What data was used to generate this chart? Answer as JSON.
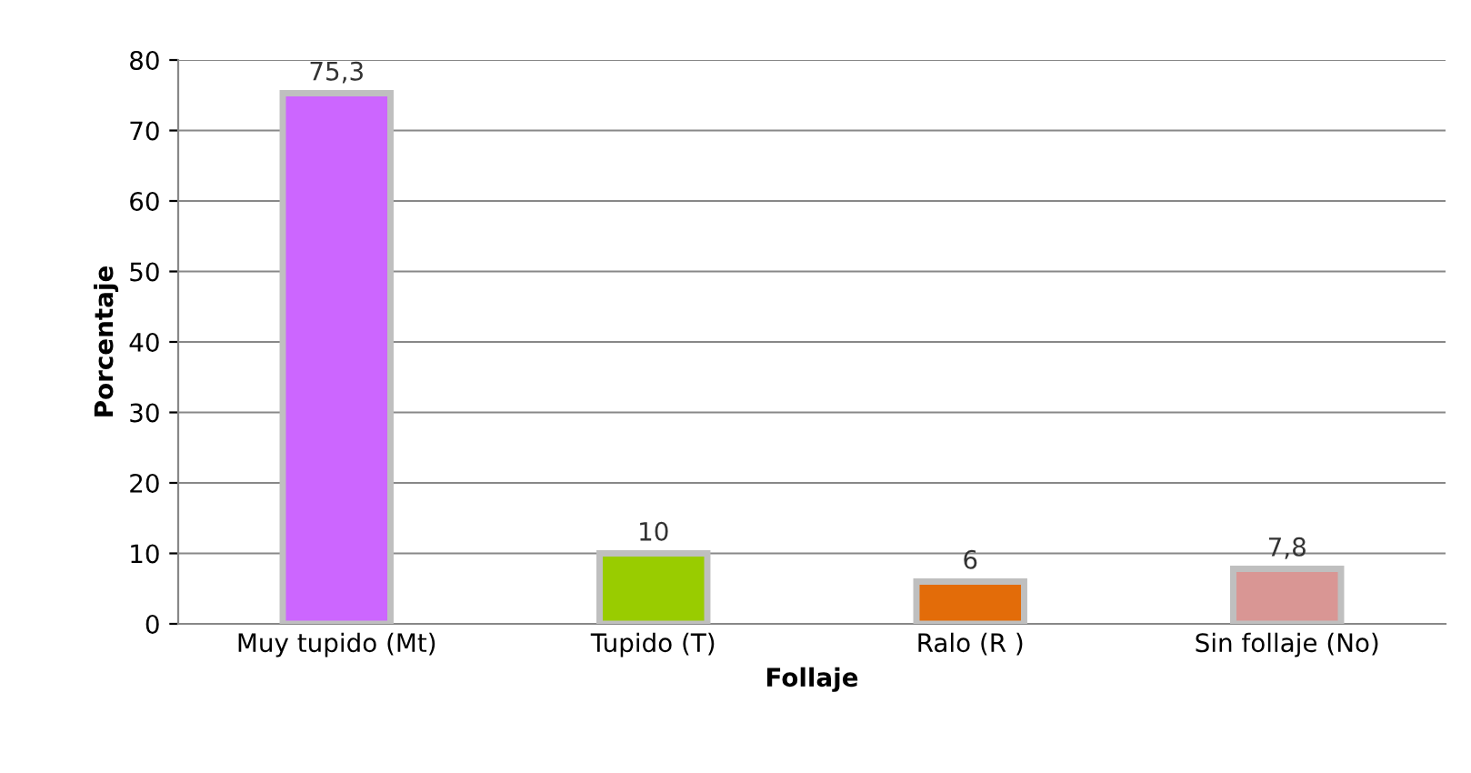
{
  "chart_data": {
    "type": "bar",
    "xlabel": "Follaje",
    "ylabel": "Porcentaje",
    "categories": [
      "Muy tupido (Mt)",
      "Tupido (T)",
      "Ralo (R )",
      "Sin follaje (No)"
    ],
    "values": [
      75.3,
      10,
      6,
      7.8
    ],
    "value_labels": [
      "75,3",
      "10",
      "6",
      "7,8"
    ],
    "colors": [
      "#cc66ff",
      "#99cc00",
      "#e36c09",
      "#d99694"
    ],
    "ylim": [
      0,
      80
    ],
    "yticks": [
      0,
      10,
      20,
      30,
      40,
      50,
      60,
      70,
      80
    ],
    "grid": "y",
    "legend": false
  }
}
